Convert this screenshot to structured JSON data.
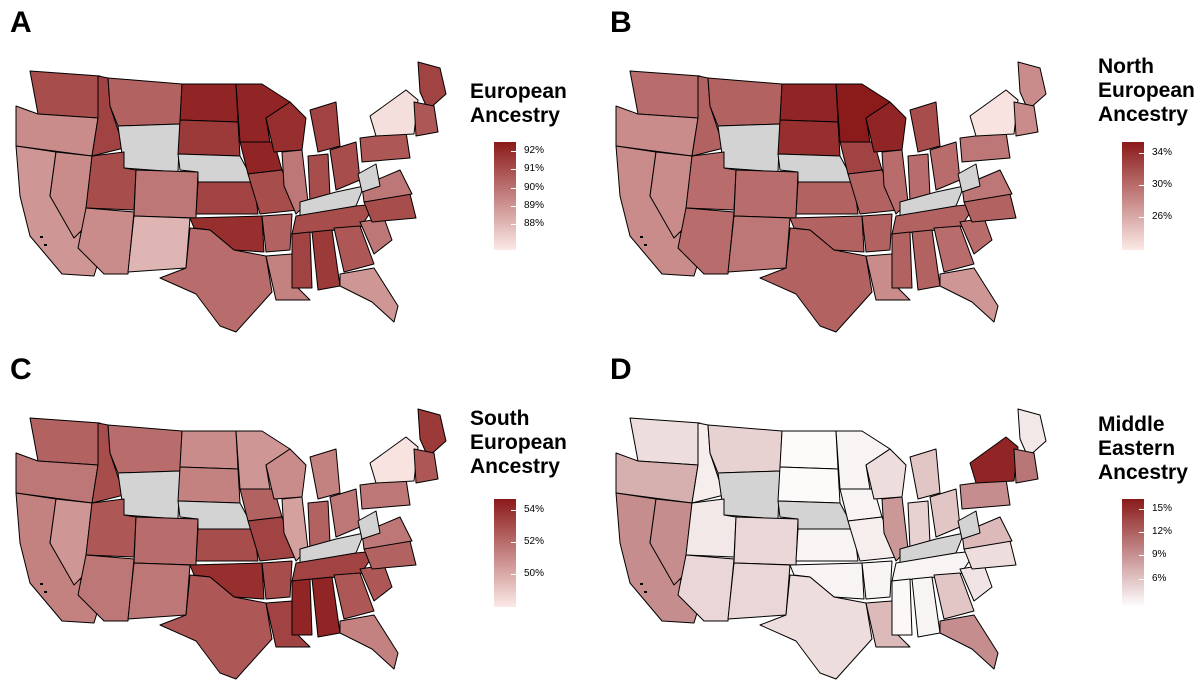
{
  "panels": [
    {
      "letter": "A",
      "legend_title": [
        "European",
        "Ancestry"
      ],
      "ticks": [
        "92%",
        "91%",
        "90%",
        "89%",
        "88%"
      ],
      "low_color": "#fbe9e6",
      "high_color": "#8b1a1a",
      "fills": {
        "WA": 0.75,
        "OR": 0.45,
        "CA": 0.4,
        "NV": 0.45,
        "ID": 0.8,
        "MT": 0.65,
        "WY": null,
        "UT": 0.75,
        "CO": 0.55,
        "AZ": 0.45,
        "NM": 0.25,
        "ND": 0.95,
        "SD": 0.85,
        "NE": null,
        "KS": 0.8,
        "OK": 0.9,
        "TX": 0.6,
        "MN": 0.95,
        "IA": 0.95,
        "MO": 0.75,
        "AR": 0.65,
        "LA": 0.5,
        "WI": 0.9,
        "IL": 0.55,
        "MI": 0.8,
        "IN": 0.75,
        "OH": 0.75,
        "KY": null,
        "TN": 0.75,
        "MS": 0.8,
        "AL": 0.85,
        "GA": 0.7,
        "FL": 0.4,
        "SC": 0.55,
        "NC": 0.75,
        "VA": 0.55,
        "WV": null,
        "PA": 0.7,
        "NY": 0.05,
        "ME": 0.8,
        "NE_SMALL": 0.7
      }
    },
    {
      "letter": "B",
      "legend_title": [
        "North",
        "European",
        "Ancestry"
      ],
      "ticks": [
        "34%",
        "30%",
        "26%"
      ],
      "low_color": "#fbe9e6",
      "high_color": "#8b1a1a",
      "fills": {
        "WA": 0.6,
        "OR": 0.45,
        "CA": 0.45,
        "NV": 0.45,
        "ID": 0.65,
        "MT": 0.65,
        "WY": null,
        "UT": 0.6,
        "CO": 0.6,
        "AZ": 0.6,
        "NM": 0.55,
        "ND": 0.95,
        "SD": 0.9,
        "NE": null,
        "KS": 0.65,
        "OK": 0.65,
        "TX": 0.65,
        "MN": 1.0,
        "IA": 0.8,
        "MO": 0.65,
        "AR": 0.65,
        "LA": 0.45,
        "WI": 0.95,
        "IL": 0.6,
        "MI": 0.75,
        "IN": 0.6,
        "OH": 0.6,
        "KY": null,
        "TN": 0.65,
        "MS": 0.65,
        "AL": 0.65,
        "GA": 0.6,
        "FL": 0.4,
        "SC": 0.6,
        "NC": 0.65,
        "VA": 0.55,
        "WV": null,
        "PA": 0.55,
        "NY": 0.03,
        "ME": 0.45,
        "NE_SMALL": 0.45
      }
    },
    {
      "letter": "C",
      "legend_title": [
        "South",
        "European",
        "Ancestry"
      ],
      "ticks": [
        "54%",
        "52%",
        "50%"
      ],
      "low_color": "#fbe9e6",
      "high_color": "#8b1a1a",
      "fills": {
        "WA": 0.65,
        "OR": 0.55,
        "CA": 0.5,
        "NV": 0.4,
        "ID": 0.75,
        "MT": 0.6,
        "WY": null,
        "UT": 0.7,
        "CO": 0.6,
        "AZ": 0.55,
        "NM": 0.55,
        "ND": 0.45,
        "SD": 0.5,
        "NE": null,
        "KS": 0.75,
        "OK": 0.9,
        "TX": 0.7,
        "MN": 0.4,
        "IA": 0.65,
        "MO": 0.8,
        "AR": 0.75,
        "LA": 0.8,
        "WI": 0.45,
        "IL": 0.35,
        "MI": 0.5,
        "IN": 0.65,
        "OH": 0.55,
        "KY": null,
        "TN": 0.8,
        "MS": 0.95,
        "AL": 0.95,
        "GA": 0.7,
        "FL": 0.5,
        "SC": 0.7,
        "NC": 0.65,
        "VA": 0.55,
        "WV": null,
        "PA": 0.55,
        "NY": 0.03,
        "ME": 0.85,
        "NE_SMALL": 0.7
      }
    },
    {
      "letter": "D",
      "legend_title": [
        "Middle",
        "Eastern",
        "Ancestry"
      ],
      "ticks": [
        "15%",
        "12%",
        "9%",
        "6%"
      ],
      "low_color": "#ffffff",
      "high_color": "#8b1a1a",
      "fills": {
        "WA": 0.15,
        "OR": 0.35,
        "CA": 0.5,
        "NV": 0.5,
        "ID": 0.08,
        "MT": 0.2,
        "WY": null,
        "UT": 0.1,
        "CO": 0.18,
        "AZ": 0.18,
        "NM": 0.18,
        "ND": 0.02,
        "SD": 0.02,
        "NE": null,
        "KS": 0.05,
        "OK": 0.05,
        "TX": 0.15,
        "MN": 0.05,
        "IA": 0.05,
        "MO": 0.08,
        "AR": 0.05,
        "LA": 0.3,
        "WI": 0.15,
        "IL": 0.45,
        "MI": 0.25,
        "IN": 0.2,
        "OH": 0.25,
        "KY": null,
        "TN": 0.05,
        "MS": 0.03,
        "AL": 0.05,
        "GA": 0.25,
        "FL": 0.5,
        "SC": 0.12,
        "NC": 0.15,
        "VA": 0.3,
        "WV": null,
        "PA": 0.5,
        "NY": 0.95,
        "ME": 0.1,
        "NE_SMALL": 0.6
      }
    }
  ],
  "missing_color": "#d3d3d3"
}
